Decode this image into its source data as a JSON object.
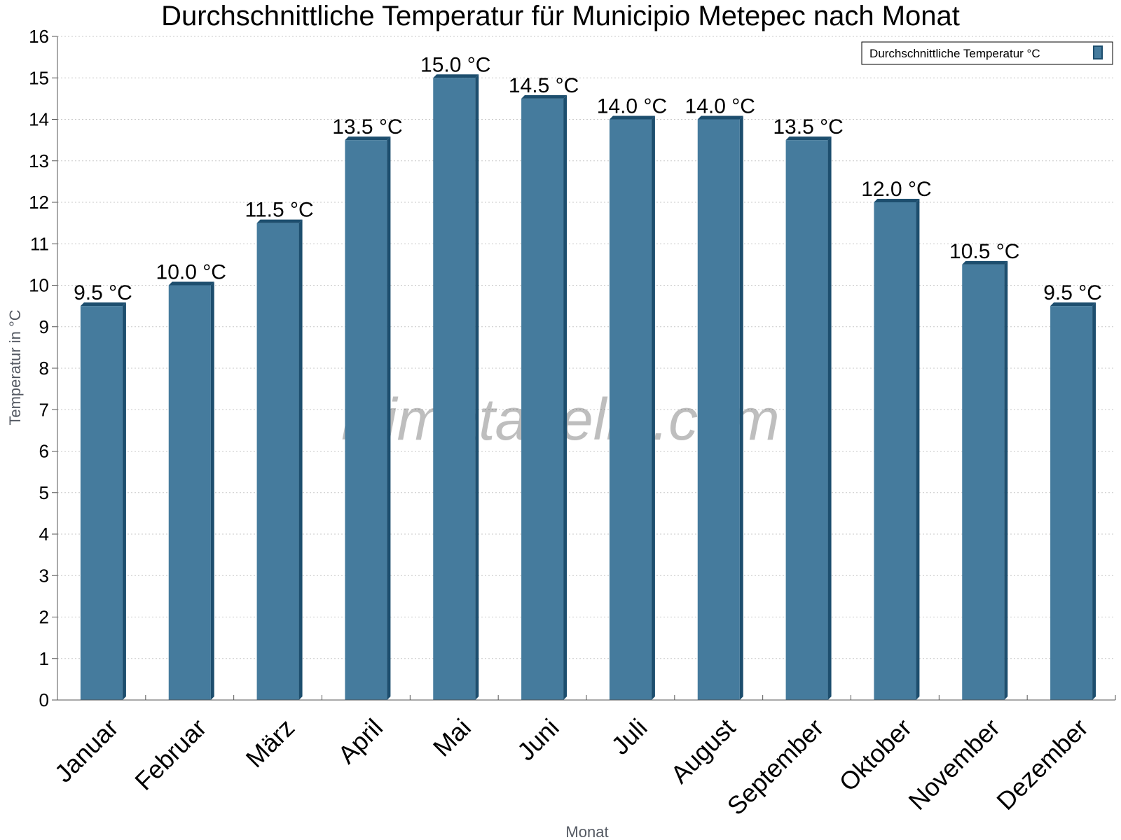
{
  "chart_data": {
    "type": "bar",
    "title": "Durchschnittliche Temperatur für Municipio Metepec nach Monat",
    "xlabel": "Monat",
    "ylabel": "Temperatur in °C",
    "categories": [
      "Januar",
      "Februar",
      "März",
      "April",
      "Mai",
      "Juni",
      "Juli",
      "August",
      "September",
      "Oktober",
      "November",
      "Dezember"
    ],
    "series": [
      {
        "name": "Durchschnittliche Temperatur °C",
        "values": [
          9.5,
          10.0,
          11.5,
          13.5,
          15.0,
          14.5,
          14.0,
          14.0,
          13.5,
          12.0,
          10.5,
          9.5
        ],
        "labels": [
          "9.5 °C",
          "10.0 °C",
          "11.5 °C",
          "13.5 °C",
          "15.0 °C",
          "14.5 °C",
          "14.0 °C",
          "14.0 °C",
          "13.5 °C",
          "12.0 °C",
          "10.5 °C",
          "9.5 °C"
        ],
        "color": "#457b9d",
        "edge_color": "#1d4e6e"
      }
    ],
    "ylim": [
      0,
      16
    ],
    "yticks": [
      "0",
      "1",
      "2",
      "3",
      "4",
      "5",
      "6",
      "7",
      "8",
      "9",
      "10",
      "11",
      "12",
      "13",
      "14",
      "15",
      "16"
    ],
    "grid": true,
    "legend_position": "top-right"
  },
  "watermark": "klimatabelle.com"
}
